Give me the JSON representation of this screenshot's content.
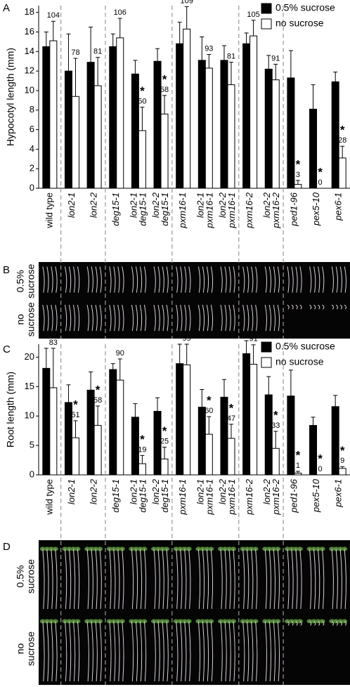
{
  "chart_data": [
    {
      "type": "bar",
      "panel_label": "A",
      "y_label": "Hypocotyl length (mm)",
      "categories": [
        [
          "wild type"
        ],
        [
          "lon2-1"
        ],
        [
          "lon2-2"
        ],
        [
          "deg15-1"
        ],
        [
          "lon2-1",
          "deg15-1"
        ],
        [
          "lon2-2",
          "deg15-1"
        ],
        [
          "pxm16-1"
        ],
        [
          "lon2-1",
          "pxm16-1"
        ],
        [
          "lon2-2",
          "pxm16-1"
        ],
        [
          "pxm16-2"
        ],
        [
          "lon2-2",
          "pxm16-2"
        ],
        [
          "ped1-96"
        ],
        [
          "pex5-10"
        ],
        [
          "pex6-1"
        ]
      ],
      "series": [
        {
          "name": "0.5% sucrose",
          "color": "#000000",
          "values": [
            14.5,
            12.0,
            12.9,
            14.5,
            11.7,
            13.0,
            14.8,
            13.1,
            13.1,
            14.8,
            12.2,
            11.3,
            8.1,
            10.9
          ],
          "errors": [
            1.5,
            3.8,
            3.6,
            1.3,
            1.4,
            1.3,
            2.2,
            2.4,
            1.5,
            1.1,
            1.4,
            2.8,
            2.5,
            1.0
          ]
        },
        {
          "name": "no sucrose",
          "color": "#ffffff",
          "values": [
            15.1,
            9.4,
            10.5,
            15.4,
            5.9,
            7.6,
            16.3,
            12.3,
            10.6,
            15.6,
            11.1,
            0.4,
            0,
            3.1
          ],
          "errors": [
            2.0,
            3.9,
            2.9,
            2.0,
            2.4,
            1.9,
            2.3,
            1.4,
            2.3,
            1.6,
            1.6,
            0.4,
            0,
            1.2
          ]
        }
      ],
      "percent_labels": [
        104,
        78,
        81,
        106,
        50,
        58,
        109,
        93,
        81,
        105,
        91,
        3,
        0,
        28
      ],
      "significance": [
        null,
        null,
        null,
        null,
        "*",
        "*",
        null,
        null,
        null,
        null,
        null,
        "*",
        "*",
        "*"
      ],
      "ylim": [
        0,
        18.7
      ],
      "yticks": [
        0,
        2,
        4,
        6,
        8,
        10,
        12,
        14,
        16,
        18
      ],
      "legend": "top-right"
    },
    {
      "type": "bar",
      "panel_label": "C",
      "y_label": "Root length (mm)",
      "categories": [
        [
          "wild type"
        ],
        [
          "lon2-1"
        ],
        [
          "lon2-2"
        ],
        [
          "deg15-1"
        ],
        [
          "lon2-1",
          "deg15-1"
        ],
        [
          "lon2-2",
          "deg15-1"
        ],
        [
          "pxm16-1"
        ],
        [
          "lon2-1",
          "pxm16-1"
        ],
        [
          "lon2-2",
          "pxm16-1"
        ],
        [
          "pxm16-2"
        ],
        [
          "lon2-2",
          "pxm16-2"
        ],
        [
          "ped1-96"
        ],
        [
          "pex5-10"
        ],
        [
          "pex6-1"
        ]
      ],
      "series": [
        {
          "name": "0.5% sucrose",
          "color": "#000000",
          "values": [
            18.1,
            12.3,
            14.4,
            17.9,
            9.8,
            10.8,
            18.9,
            11.5,
            13.2,
            20.6,
            13.6,
            13.4,
            8.4,
            11.6
          ],
          "errors": [
            3.4,
            3.0,
            3.1,
            1.0,
            2.3,
            2.3,
            3.3,
            3.0,
            3.0,
            2.2,
            3.1,
            4.4,
            1.4,
            1.9
          ]
        },
        {
          "name": "no sucrose",
          "color": "#ffffff",
          "values": [
            14.8,
            6.3,
            8.4,
            16.1,
            1.9,
            2.7,
            18.7,
            6.9,
            6.2,
            18.8,
            4.5,
            0.3,
            0,
            1.1
          ],
          "errors": [
            6.7,
            2.9,
            3.3,
            3.6,
            1.4,
            2.0,
            3.5,
            3.0,
            2.4,
            3.3,
            2.9,
            0.3,
            0,
            0.3
          ]
        }
      ],
      "percent_labels": [
        83,
        51,
        58,
        90,
        19,
        25,
        99,
        60,
        47,
        91,
        33,
        1,
        0,
        9
      ],
      "significance": [
        null,
        "*",
        "*",
        null,
        "*",
        "*",
        null,
        "*",
        "*",
        null,
        "*",
        "*",
        "*",
        "*"
      ],
      "ylim": [
        0,
        22.2
      ],
      "yticks": [
        0,
        5,
        10,
        15,
        20
      ],
      "legend": "top-right"
    }
  ],
  "photo_panels": [
    {
      "panel_label": "B",
      "rows": [
        [
          "0.5%",
          "sucrose"
        ],
        [
          "no",
          "sucrose"
        ]
      ]
    },
    {
      "panel_label": "D",
      "rows": [
        [
          "0.5%",
          "sucrose"
        ],
        [
          "no",
          "sucrose"
        ]
      ]
    }
  ]
}
